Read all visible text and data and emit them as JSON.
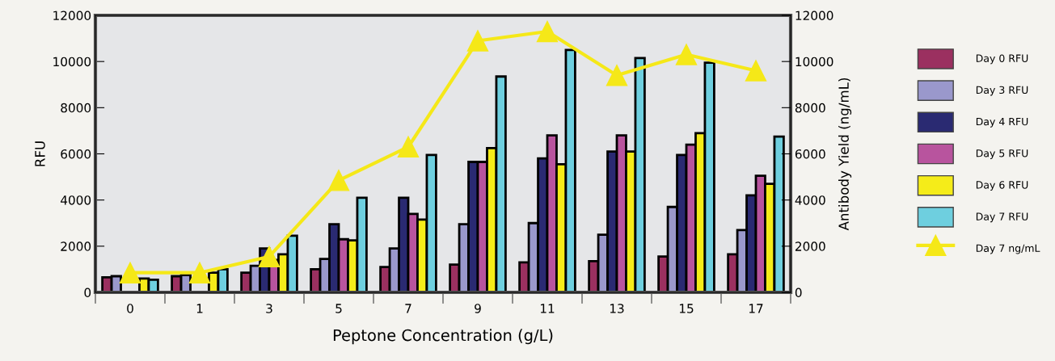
{
  "chart_data": {
    "type": "bar",
    "xlabel": "Peptone Concentration (g/L)",
    "ylabel": "RFU",
    "y2label": "Antibody Yield (ng/mL)",
    "categories": [
      "0",
      "1",
      "3",
      "5",
      "7",
      "9",
      "11",
      "13",
      "15",
      "17"
    ],
    "series": [
      {
        "name": "Day 0 RFU",
        "color": "#9b3060",
        "values": [
          650,
          700,
          850,
          1000,
          1100,
          1200,
          1300,
          1350,
          1550,
          1650
        ]
      },
      {
        "name": "Day 3 RFU",
        "color": "#9a98cc",
        "values": [
          700,
          750,
          1150,
          1450,
          1900,
          2950,
          3000,
          2500,
          3700,
          2700
        ]
      },
      {
        "name": "Day 4 RFU",
        "color": "#2a2a72",
        "values": [
          null,
          null,
          1900,
          2950,
          4100,
          5650,
          5800,
          6100,
          5950,
          4200
        ]
      },
      {
        "name": "Day 5 RFU",
        "color": "#b8549e",
        "values": [
          null,
          null,
          1400,
          2300,
          3400,
          5650,
          6800,
          6800,
          6400,
          5050
        ]
      },
      {
        "name": "Day 6 RFU",
        "color": "#f5ec19",
        "values": [
          600,
          850,
          1650,
          2250,
          3150,
          6250,
          5550,
          6100,
          6900,
          4700
        ]
      },
      {
        "name": "Day 7 RFU",
        "color": "#6ecfdf",
        "values": [
          550,
          1000,
          2450,
          4100,
          5950,
          9350,
          10500,
          10150,
          9950,
          6750
        ]
      },
      {
        "name": "Day 7 ng/mL",
        "color": "#f5e818",
        "type": "line",
        "axis": "y2",
        "marker": "triangle",
        "values": [
          850,
          850,
          1550,
          4850,
          6300,
          10900,
          11300,
          9400,
          10300,
          9600
        ]
      }
    ],
    "ylim": [
      0,
      12000
    ],
    "yticks": [
      0,
      2000,
      4000,
      6000,
      8000,
      10000,
      12000
    ],
    "y2lim": [
      0,
      12000
    ],
    "y2ticks": [
      0,
      2000,
      4000,
      6000,
      8000,
      10000,
      12000
    ],
    "grid": false,
    "legend": "right"
  }
}
